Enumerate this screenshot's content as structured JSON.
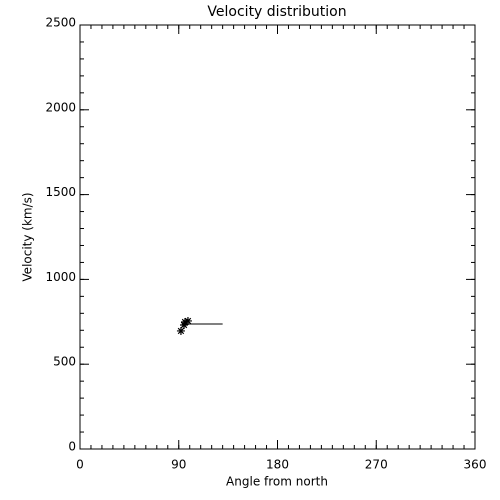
{
  "chart_data": {
    "type": "scatter",
    "title": "Velocity distribution",
    "xlabel": "Angle from north",
    "ylabel": "Velocity (km/s)",
    "series": [
      {
        "type": "scatter",
        "marker": "asterisk",
        "color": "#000000",
        "x": [
          92,
          94.8,
          95.7,
          98.4
        ],
        "values": [
          696,
          731,
          749,
          755
        ]
      },
      {
        "type": "line",
        "color": "#000000",
        "x": [
          96,
          130
        ],
        "values": [
          737,
          737
        ]
      }
    ],
    "xlim": [
      0,
      360
    ],
    "xticks": [
      0,
      90,
      180,
      270,
      360
    ],
    "xminorticks": [
      0,
      10,
      20,
      30,
      40,
      50,
      60,
      70,
      80,
      90,
      100,
      110,
      120,
      130,
      140,
      150,
      160,
      170,
      180,
      190,
      200,
      210,
      220,
      230,
      240,
      250,
      260,
      270,
      280,
      290,
      300,
      310,
      320,
      330,
      340,
      350,
      360
    ],
    "ylim": [
      0,
      2500
    ],
    "yticks": [
      0,
      500,
      1000,
      1500,
      2000,
      2500
    ],
    "yminorticks": [
      0,
      100,
      200,
      300,
      400,
      500,
      600,
      700,
      800,
      900,
      1000,
      1100,
      1200,
      1300,
      1400,
      1500,
      1600,
      1700,
      1800,
      1900,
      2000,
      2100,
      2200,
      2300,
      2400,
      2500
    ],
    "grid": false
  }
}
